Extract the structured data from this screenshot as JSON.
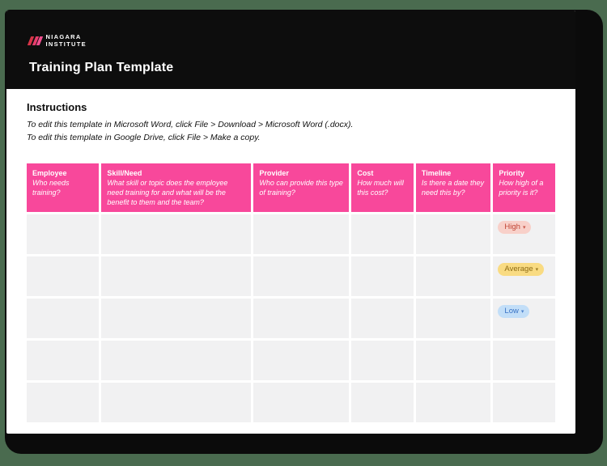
{
  "page": {
    "background_color": "#4a6b4f",
    "shadow_color": "#0b0b0b",
    "header_bg": "#0d0d0d"
  },
  "brand": {
    "logo_line1": "NIAGARA",
    "logo_line2": "INSTITUTE"
  },
  "header": {
    "title": "Training Plan Template"
  },
  "instructions": {
    "heading": "Instructions",
    "lines": [
      "To edit this template in Microsoft Word, click File > Download > Microsoft Word (.docx).",
      "To edit this template in Google Drive, click File > Make a copy."
    ]
  },
  "table": {
    "header_color": "#f8489b",
    "cell_color": "#f1f1f2",
    "columns": [
      {
        "label": "Employee",
        "description": "Who needs training?"
      },
      {
        "label": "Skill/Need",
        "description": "What skill or topic does the employee need training for and what will be the benefit to them and the team?"
      },
      {
        "label": "Provider",
        "description": "Who can provide this type of training?"
      },
      {
        "label": "Cost",
        "description": "How much will this cost?"
      },
      {
        "label": "Timeline",
        "description": "Is there a date they need this by?"
      },
      {
        "label": "Priority",
        "description": "How high of a priority is it?"
      }
    ],
    "rows": [
      {
        "priority": {
          "label": "High",
          "bg": "#f8d0c9",
          "color": "#c04434"
        }
      },
      {
        "priority": {
          "label": "Average",
          "bg": "#f9db82",
          "color": "#8e6c14"
        }
      },
      {
        "priority": {
          "label": "Low",
          "bg": "#c2def8",
          "color": "#3973c5"
        }
      },
      {
        "priority": null
      },
      {
        "priority": null
      }
    ],
    "priority_caret": "▾"
  }
}
